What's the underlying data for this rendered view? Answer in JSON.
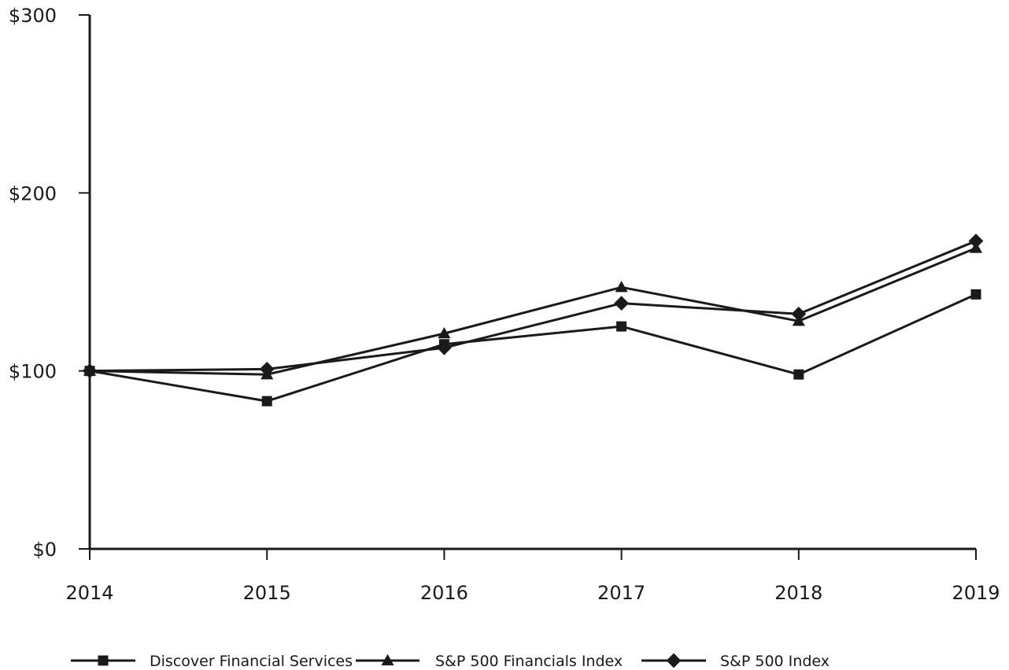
{
  "chart_data": {
    "type": "line",
    "title": "",
    "xlabel": "",
    "ylabel": "",
    "x": [
      "2014",
      "2015",
      "2016",
      "2017",
      "2018",
      "2019"
    ],
    "ylim": [
      0,
      300
    ],
    "y_ticks": [
      0,
      100,
      200,
      300
    ],
    "y_tick_labels": [
      "$0",
      "$100",
      "$200",
      "$300"
    ],
    "grid": false,
    "legend_position": "bottom",
    "series": [
      {
        "name": "Discover Financial Services",
        "marker": "square",
        "values": [
          100,
          83,
          115,
          125,
          98,
          143
        ]
      },
      {
        "name": "S&P 500 Financials Index",
        "marker": "triangle",
        "values": [
          100,
          98,
          121,
          147,
          128,
          169
        ]
      },
      {
        "name": "S&P 500 Index",
        "marker": "diamond",
        "values": [
          100,
          101,
          113,
          138,
          132,
          173
        ]
      }
    ],
    "colors": {
      "ink": "#1a1a1a",
      "background": "#ffffff"
    }
  }
}
